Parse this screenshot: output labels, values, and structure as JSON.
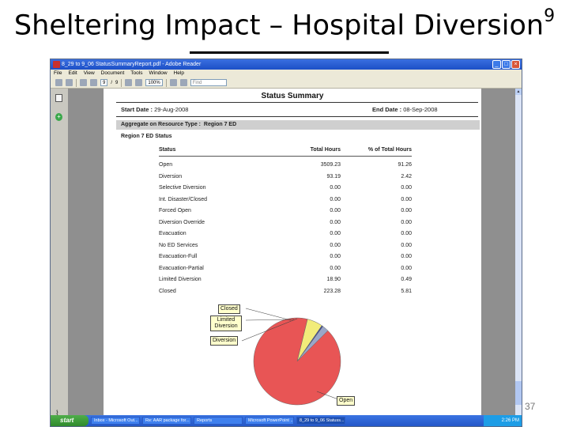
{
  "slide": {
    "title": "Sheltering Impact – Hospital Diversion",
    "title_superscript": "9",
    "page_number": "37"
  },
  "window": {
    "title": "8_29 to 9_06 StatusSummaryReport.pdf - Adobe Reader",
    "menu": [
      "File",
      "Edit",
      "View",
      "Document",
      "Tools",
      "Window",
      "Help"
    ],
    "toolbar": {
      "page_current": "9",
      "page_total": "9",
      "zoom": "100%",
      "find_placeholder": "Find"
    }
  },
  "report": {
    "title": "Status Summary",
    "start_label": "Start Date :",
    "start_value": "29-Aug-2008",
    "end_label": "End Date :",
    "end_value": "08-Sep-2008",
    "aggregate_label": "Aggregate on Resource Type :",
    "aggregate_value": "Region 7 ED",
    "region_label": "Region 7 ED Status",
    "columns": [
      "Status",
      "Total Hours",
      "% of Total Hours"
    ],
    "rows": [
      [
        "Open",
        "3509.23",
        "91.26"
      ],
      [
        "Diversion",
        "93.19",
        "2.42"
      ],
      [
        "Selective Diversion",
        "0.00",
        "0.00"
      ],
      [
        "Int. Disaster/Closed",
        "0.00",
        "0.00"
      ],
      [
        "Forced Open",
        "0.00",
        "0.00"
      ],
      [
        "Diversion Override",
        "0.00",
        "0.00"
      ],
      [
        "Evacuation",
        "0.00",
        "0.00"
      ],
      [
        "No ED Services",
        "0.00",
        "0.00"
      ],
      [
        "Evacuation-Full",
        "0.00",
        "0.00"
      ],
      [
        "Evacuation-Partial",
        "0.00",
        "0.00"
      ],
      [
        "Limited Diversion",
        "18.90",
        "0.49"
      ],
      [
        "Closed",
        "223.28",
        "5.81"
      ]
    ]
  },
  "chart_data": {
    "type": "pie",
    "labels": [
      "Open",
      "Closed",
      "Limited Diversion",
      "Diversion"
    ],
    "values": [
      91.26,
      5.81,
      0.49,
      2.42
    ],
    "colors": [
      "#e85555",
      "#f2ec7a",
      "#3c4a9e",
      "#9aa6c8"
    ]
  },
  "taskbar": {
    "start": "start",
    "tasks": [
      "Inbox - Microsoft Out...",
      "Re: AAR package for...",
      "Reports",
      "Microsoft PowerPoint ...",
      "8_29 to 9_06 Statuss..."
    ],
    "clock": "2:26 PM"
  }
}
